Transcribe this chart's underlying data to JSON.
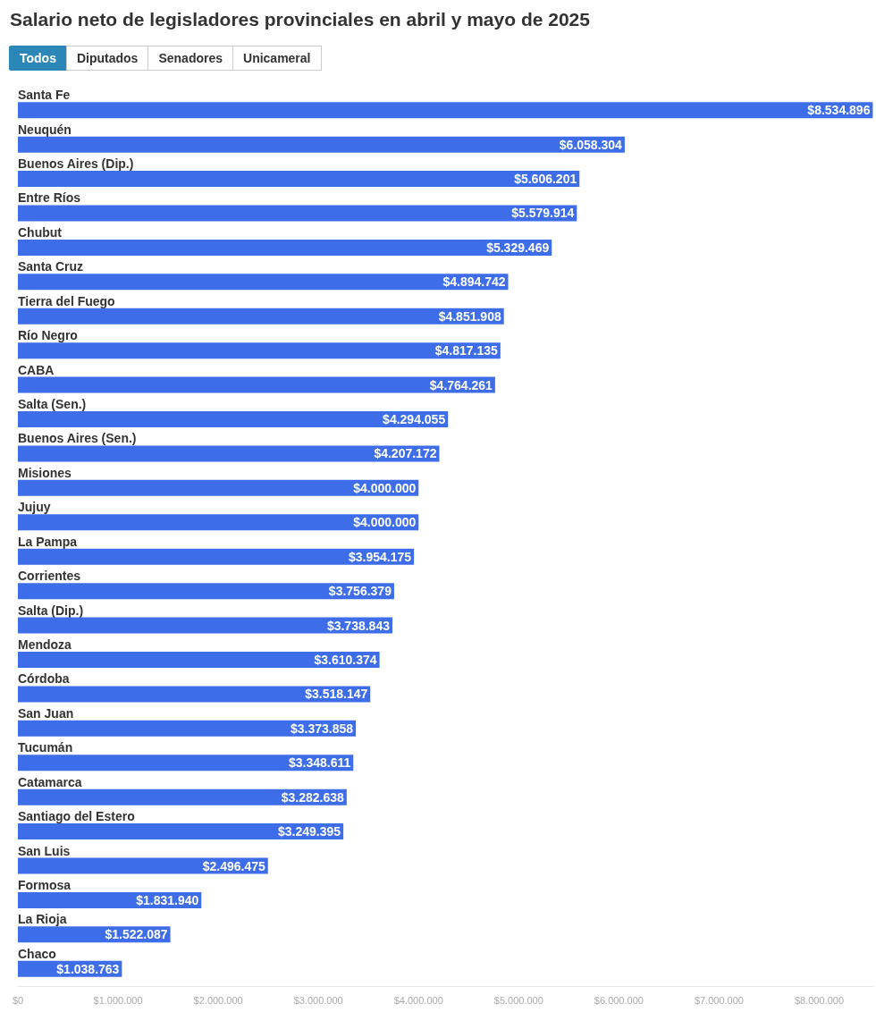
{
  "chart_data": {
    "type": "bar",
    "orientation": "horizontal",
    "title": "Salario neto de legisladores provinciales en abril y mayo de 2025",
    "annotations": [
      "Todos",
      "Diputados",
      "Senadores",
      "Unicameral"
    ],
    "categories": [
      "Santa Fe",
      "Neuquén",
      "Buenos Aires (Dip.)",
      "Entre Ríos",
      "Chubut",
      "Santa Cruz",
      "Tierra del Fuego",
      "Río Negro",
      "CABA",
      "Salta (Sen.)",
      "Buenos Aires (Sen.)",
      "Misiones",
      "Jujuy",
      "La Pampa",
      "Corrientes",
      "Salta (Dip.)",
      "Mendoza",
      "Córdoba",
      "San Juan",
      "Tucumán",
      "Catamarca",
      "Santiago del Estero",
      "San Luis",
      "Formosa",
      "La Rioja",
      "Chaco"
    ],
    "values": [
      8534896,
      6058304,
      5606201,
      5579914,
      5329469,
      4894742,
      4851908,
      4817135,
      4764261,
      4294055,
      4207172,
      4000000,
      4000000,
      3954175,
      3756379,
      3738843,
      3610374,
      3518147,
      3373858,
      3348611,
      3282638,
      3249395,
      2496475,
      1831940,
      1522087,
      1038763
    ],
    "value_labels": [
      "$8.534.896",
      "$6.058.304",
      "$5.606.201",
      "$5.579.914",
      "$5.329.469",
      "$4.894.742",
      "$4.851.908",
      "$4.817.135",
      "$4.764.261",
      "$4.294.055",
      "$4.207.172",
      "$4.000.000",
      "$4.000.000",
      "$3.954.175",
      "$3.756.379",
      "$3.738.843",
      "$3.610.374",
      "$3.518.147",
      "$3.373.858",
      "$3.348.611",
      "$3.282.638",
      "$3.249.395",
      "$2.496.475",
      "$1.831.940",
      "$1.522.087",
      "$1.038.763"
    ],
    "color": "#3d6de8",
    "xlim": [
      0,
      8540000
    ],
    "xticks": [
      {
        "value": 0,
        "label": "$0"
      },
      {
        "value": 1000000,
        "label": "$1.000.000"
      },
      {
        "value": 2000000,
        "label": "$2.000.000"
      },
      {
        "value": 3000000,
        "label": "$3.000.000"
      },
      {
        "value": 4000000,
        "label": "$4.000.000"
      },
      {
        "value": 5000000,
        "label": "$5.000.000"
      },
      {
        "value": 6000000,
        "label": "$6.000.000"
      },
      {
        "value": 7000000,
        "label": "$7.000.000"
      },
      {
        "value": 8000000,
        "label": "$8.000.000"
      }
    ],
    "grid": false
  }
}
